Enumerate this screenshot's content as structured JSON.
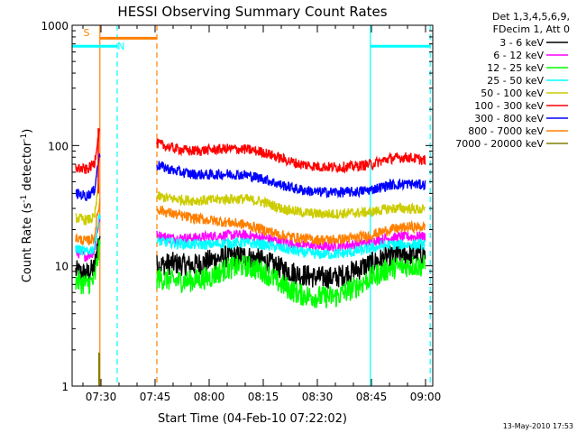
{
  "chart_data": {
    "type": "line",
    "title": "HESSI Observing Summary Count Rates",
    "xlabel": "Start Time (04-Feb-10 07:22:02)",
    "ylabel": "Count Rate (s",
    "ylabel_sup": "-1",
    "ylabel_mid": " detector",
    "ylabel_end": ")",
    "xlim": [
      442,
      542
    ],
    "ylim": [
      1,
      1000
    ],
    "yscale": "log",
    "x_ticks": [
      {
        "value": 450,
        "label": "07:30"
      },
      {
        "value": 465,
        "label": "07:45"
      },
      {
        "value": 480,
        "label": "08:00"
      },
      {
        "value": 495,
        "label": "08:15"
      },
      {
        "value": 510,
        "label": "08:30"
      },
      {
        "value": 525,
        "label": "08:45"
      },
      {
        "value": 540,
        "label": "09:00"
      }
    ],
    "y_ticks": [
      {
        "value": 1,
        "label": "1"
      },
      {
        "value": 10,
        "label": "10"
      },
      {
        "value": 100,
        "label": "100"
      },
      {
        "value": 1000,
        "label": "1000"
      }
    ],
    "legend_header": [
      "Det 1,3,4,5,6,9,",
      "FDecim 1, Att 0"
    ],
    "legend_placement": "right",
    "series": [
      {
        "name": "3 - 6 keV",
        "color": "#000000",
        "x": [
          443,
          446,
          448,
          465,
          470,
          475,
          480,
          485,
          490,
          495,
          500,
          505,
          510,
          515,
          520,
          525,
          530,
          535,
          540
        ],
        "y": [
          9,
          8.5,
          9.5,
          10,
          10.5,
          10,
          11,
          12,
          12,
          11,
          9.5,
          8.5,
          8,
          8,
          9,
          10.5,
          12,
          12.5,
          12.5
        ]
      },
      {
        "name": "6 - 12 keV",
        "color": "#ff00ff",
        "x": [
          443,
          446,
          448,
          465,
          470,
          475,
          480,
          485,
          490,
          495,
          500,
          505,
          510,
          515,
          520,
          525,
          530,
          535,
          540
        ],
        "y": [
          13,
          12,
          13,
          18,
          17,
          17,
          17.5,
          18,
          18,
          17,
          16,
          15,
          14.5,
          14.5,
          15,
          16,
          17,
          17.5,
          17.5
        ]
      },
      {
        "name": "12 - 25 keV",
        "color": "#00ff00",
        "x": [
          443,
          446,
          448,
          465,
          470,
          475,
          480,
          485,
          490,
          495,
          500,
          505,
          510,
          515,
          520,
          525,
          530,
          535,
          540
        ],
        "y": [
          7.5,
          7,
          7.5,
          8,
          7.5,
          7.5,
          8,
          9.5,
          10,
          9,
          7,
          5.8,
          5.5,
          5.5,
          6.5,
          8,
          9.5,
          10,
          10
        ]
      },
      {
        "name": "25 - 50 keV",
        "color": "#00ffff",
        "x": [
          443,
          446,
          448,
          465,
          470,
          475,
          480,
          485,
          490,
          495,
          500,
          505,
          510,
          515,
          520,
          525,
          530,
          535,
          540
        ],
        "y": [
          14,
          13,
          14,
          16,
          15.5,
          15,
          15,
          15.5,
          15.5,
          15,
          14,
          13,
          12.5,
          12.5,
          13,
          14,
          15,
          15,
          15
        ]
      },
      {
        "name": "50 - 100 keV",
        "color": "#cccc00",
        "x": [
          443,
          446,
          448,
          465,
          470,
          475,
          480,
          485,
          490,
          495,
          500,
          505,
          510,
          515,
          520,
          525,
          530,
          535,
          540
        ],
        "y": [
          25,
          24,
          25,
          38,
          36,
          35,
          35,
          36,
          36,
          34,
          30,
          28,
          27,
          27,
          27.5,
          28,
          30,
          30,
          29
        ]
      },
      {
        "name": "100 - 300 keV",
        "color": "#ff0000",
        "x": [
          443,
          446,
          448,
          465,
          470,
          475,
          480,
          485,
          490,
          495,
          500,
          505,
          510,
          515,
          520,
          525,
          530,
          535,
          540
        ],
        "y": [
          65,
          63,
          70,
          105,
          95,
          90,
          92,
          94,
          93,
          88,
          78,
          70,
          67,
          66,
          67,
          70,
          78,
          80,
          75
        ]
      },
      {
        "name": "300 - 800 keV",
        "color": "#0000ff",
        "x": [
          443,
          446,
          448,
          465,
          470,
          475,
          480,
          485,
          490,
          495,
          500,
          505,
          510,
          515,
          520,
          525,
          530,
          535,
          540
        ],
        "y": [
          40,
          38,
          42,
          70,
          62,
          58,
          57,
          58,
          57,
          53,
          47,
          43,
          41,
          41,
          41,
          43,
          47,
          48,
          47
        ]
      },
      {
        "name": "800 - 7000 keV",
        "color": "#ff8000",
        "x": [
          443,
          446,
          448,
          465,
          470,
          475,
          480,
          485,
          490,
          495,
          500,
          505,
          510,
          515,
          520,
          525,
          530,
          535,
          540
        ],
        "y": [
          17,
          16,
          17,
          30,
          27,
          25,
          24,
          23,
          22,
          20,
          18,
          17,
          16.5,
          16.5,
          17,
          18,
          20,
          21,
          21
        ]
      },
      {
        "name": "7000 - 20000 keV",
        "color": "#808000",
        "x": [
          449.5,
          449.5
        ],
        "y": [
          1,
          1.9
        ]
      }
    ],
    "spike_x": 449,
    "annotations": [
      {
        "text": "S",
        "color": "#ff8000",
        "x": 446,
        "y": 870,
        "line_x": [
          449.7,
          465.5
        ],
        "line_y": 780,
        "line_color": "#ff8000"
      },
      {
        "text": "N",
        "color": "#00ffff",
        "x": 455.6,
        "y": 670,
        "line_x": [
          442,
          454.5
        ],
        "line_y": 670,
        "line_color": "#00ffff"
      },
      {
        "text": "",
        "color": "#00ffff",
        "x": 0,
        "y": 0,
        "line_x": [
          524.7,
          541.3
        ],
        "line_y": 670,
        "line_color": "#00ffff"
      }
    ],
    "vlines": [
      {
        "x": 449.7,
        "color": "#ff8000",
        "style": "solid"
      },
      {
        "x": 454.5,
        "color": "#00ffff",
        "style": "dashed"
      },
      {
        "x": 465.5,
        "color": "#ff8000",
        "style": "dashed"
      },
      {
        "x": 524.7,
        "color": "#00ffff",
        "style": "solid"
      },
      {
        "x": 541.3,
        "color": "#00ffff",
        "style": "dashed"
      }
    ],
    "grid": false
  },
  "footer": {
    "date_stamp": "13-May-2010 17:53"
  }
}
